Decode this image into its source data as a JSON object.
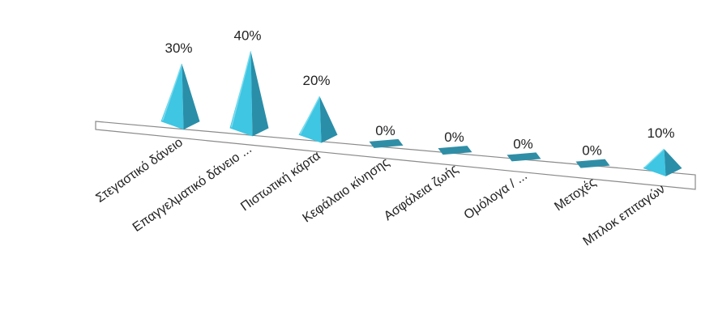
{
  "chart_data": {
    "type": "bar",
    "style": "3d-pyramid",
    "categories": [
      "Στεγαστικό δάνειο",
      "Επαγγελματικό δάνειο ...",
      "Πιστωτική κάρτα",
      "Κεφάλαιο κίνησης",
      "Ασφάλεια ζωής",
      "Ομόλογα / ...",
      "Μετοχές",
      "Μπλοκ επιταγών"
    ],
    "values": [
      30,
      40,
      20,
      0,
      0,
      0,
      0,
      10
    ],
    "value_labels": [
      "30%",
      "40%",
      "20%",
      "0%",
      "0%",
      "0%",
      "0%",
      "10%"
    ],
    "unit": "%",
    "ylim": [
      0,
      40
    ],
    "grid": false,
    "legend": "none",
    "colors": {
      "front_face": "#3ec6e3",
      "side_face": "#2a8ea8",
      "highlight": "#7fdcee",
      "floor_stroke": "#8a8a8a",
      "flat_marker": "#2f8ea6"
    }
  }
}
